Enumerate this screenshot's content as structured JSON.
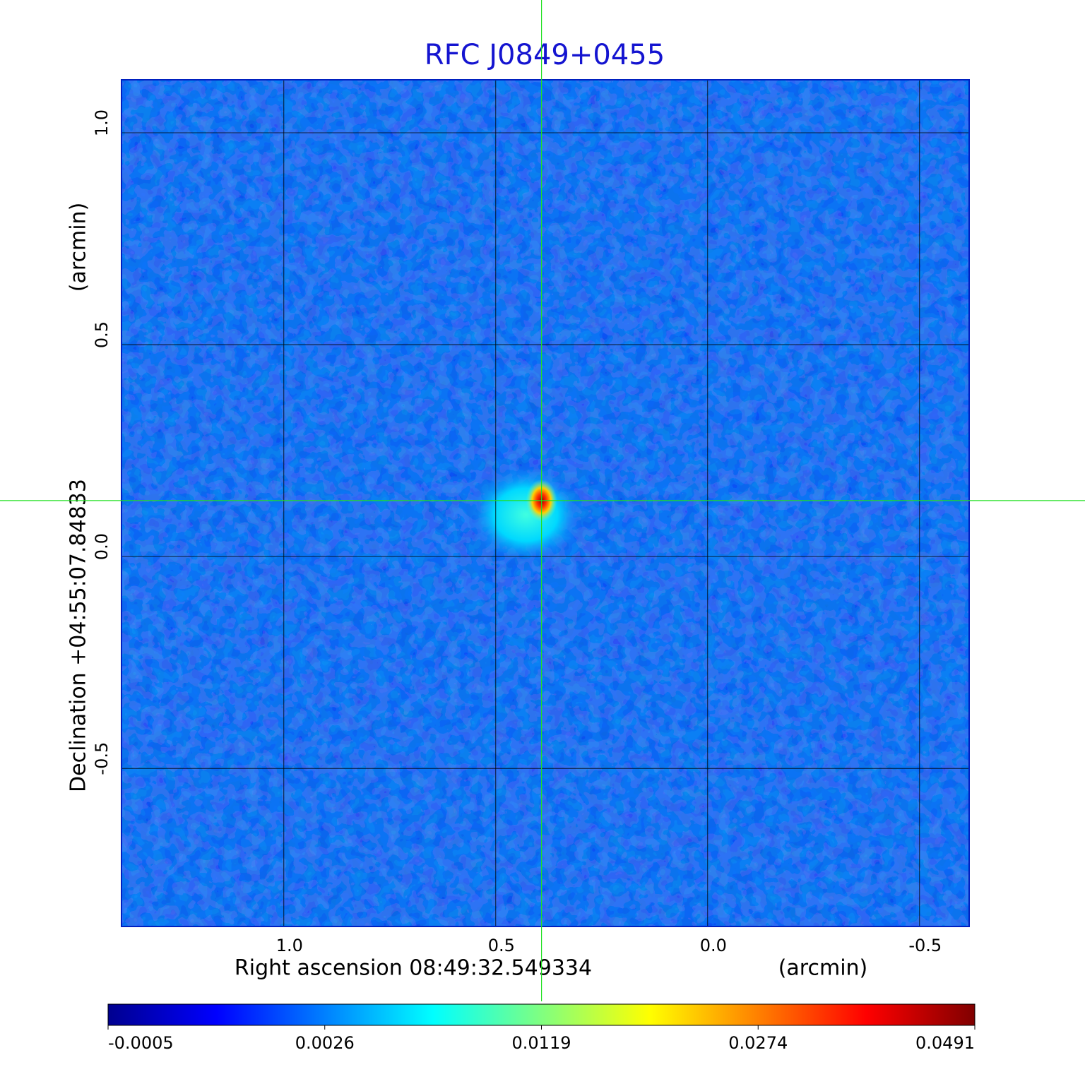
{
  "chart_data": {
    "type": "image",
    "title": "RFC J0849+0455",
    "x_label": "Right ascension  08:49:32.549334",
    "x_unit": "(arcmin)",
    "y_label": "Declination  +04:55:07.84833",
    "y_unit": "(arcmin)",
    "xlim": [
      1.383,
      -0.617
    ],
    "ylim": [
      -0.873,
      1.125
    ],
    "xticks": [
      {
        "value": 1,
        "label": "1.0"
      },
      0.5,
      {
        "value": 0,
        "label": "0.0"
      },
      -0.5
    ],
    "yticks": [
      {
        "value": 1,
        "label": "1.0"
      },
      0.5,
      {
        "value": 0,
        "label": "0.0"
      },
      -0.5
    ],
    "grid": true,
    "crosshair": {
      "x": 0.392,
      "y": 0.132
    },
    "colorbar": {
      "ticks": [
        -0.0005,
        0.0026,
        0.0119,
        0.0274,
        0.0491
      ],
      "colors": [
        "#00008f",
        "#0000ff",
        "#0080ff",
        "#00ffff",
        "#80ff80",
        "#ffff00",
        "#ff8000",
        "#ff0000",
        "#800000"
      ]
    }
  }
}
